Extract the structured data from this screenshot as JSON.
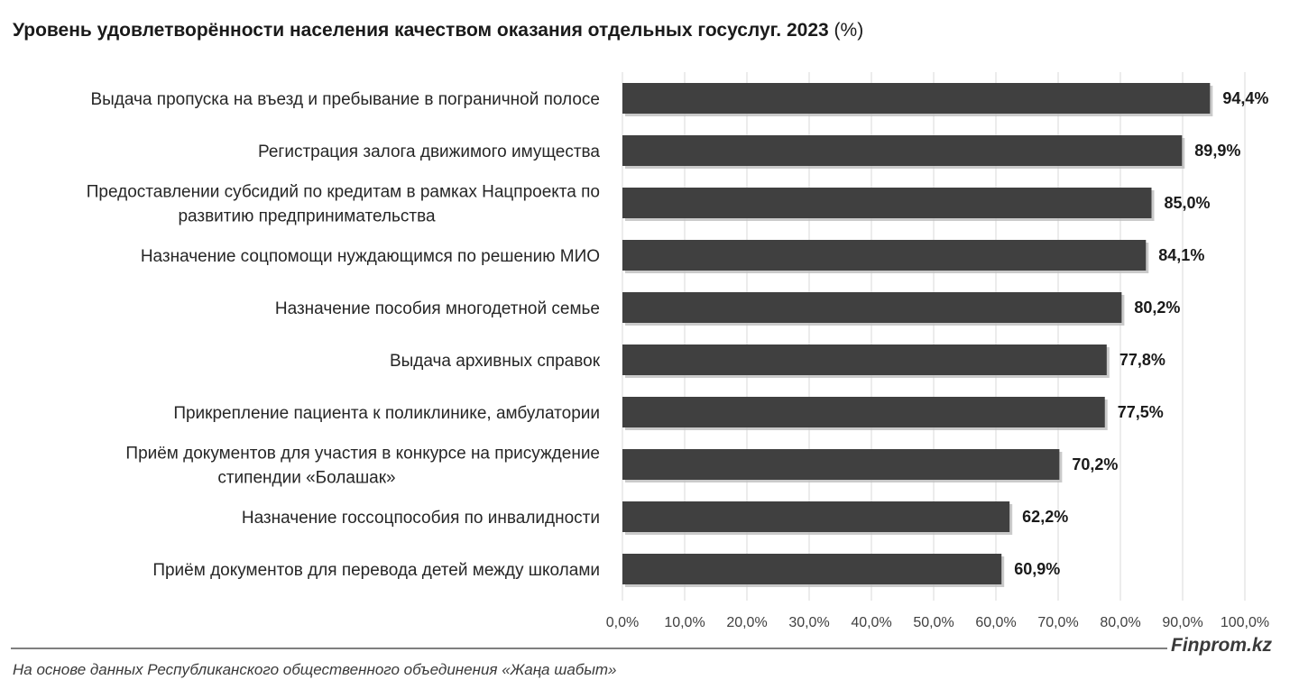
{
  "header": {
    "title": "Уровень удовлетворённости населения качеством оказания отдельных госуслуг. 2023",
    "unit": "(%)"
  },
  "footer": {
    "brand": "Finprom.kz",
    "source": "На основе данных Республиканского общественного объединения «Жаңа шабыт»"
  },
  "chart_data": {
    "type": "bar",
    "orientation": "horizontal",
    "categories": [
      [
        "Выдача пропуска на въезд и пребывание в пограничной полосе"
      ],
      [
        "Регистрация залога движимого имущества"
      ],
      [
        "Предоставлении субсидий по кредитам в рамках Нацпроекта по",
        "развитию предпринимательства"
      ],
      [
        "Назначение соцпомощи нуждающимся по решению МИО"
      ],
      [
        "Назначение пособия многодетной семье"
      ],
      [
        "Выдача архивных справок"
      ],
      [
        "Прикрепление пациента к поликлинике, амбулатории"
      ],
      [
        "Приём документов для участия в конкурсе на присуждение",
        "стипендии «Болашак»"
      ],
      [
        "Назначение госсоцпособия по инвалидности"
      ],
      [
        "Приём документов для перевода детей между школами"
      ]
    ],
    "values": [
      94.4,
      89.9,
      85.0,
      84.1,
      80.2,
      77.8,
      77.5,
      70.2,
      62.2,
      60.9
    ],
    "value_labels": [
      "94,4%",
      "89,9%",
      "85,0%",
      "84,1%",
      "80,2%",
      "77,8%",
      "77,5%",
      "70,2%",
      "62,2%",
      "60,9%"
    ],
    "xlim": [
      0,
      100
    ],
    "x_ticks": [
      "0,0%",
      "10,0%",
      "20,0%",
      "30,0%",
      "40,0%",
      "50,0%",
      "60,0%",
      "70,0%",
      "80,0%",
      "90,0%",
      "100,0%"
    ],
    "grid": true,
    "legend": "none",
    "bar_color": "#404040",
    "grid_color": "#d9d9d9"
  }
}
